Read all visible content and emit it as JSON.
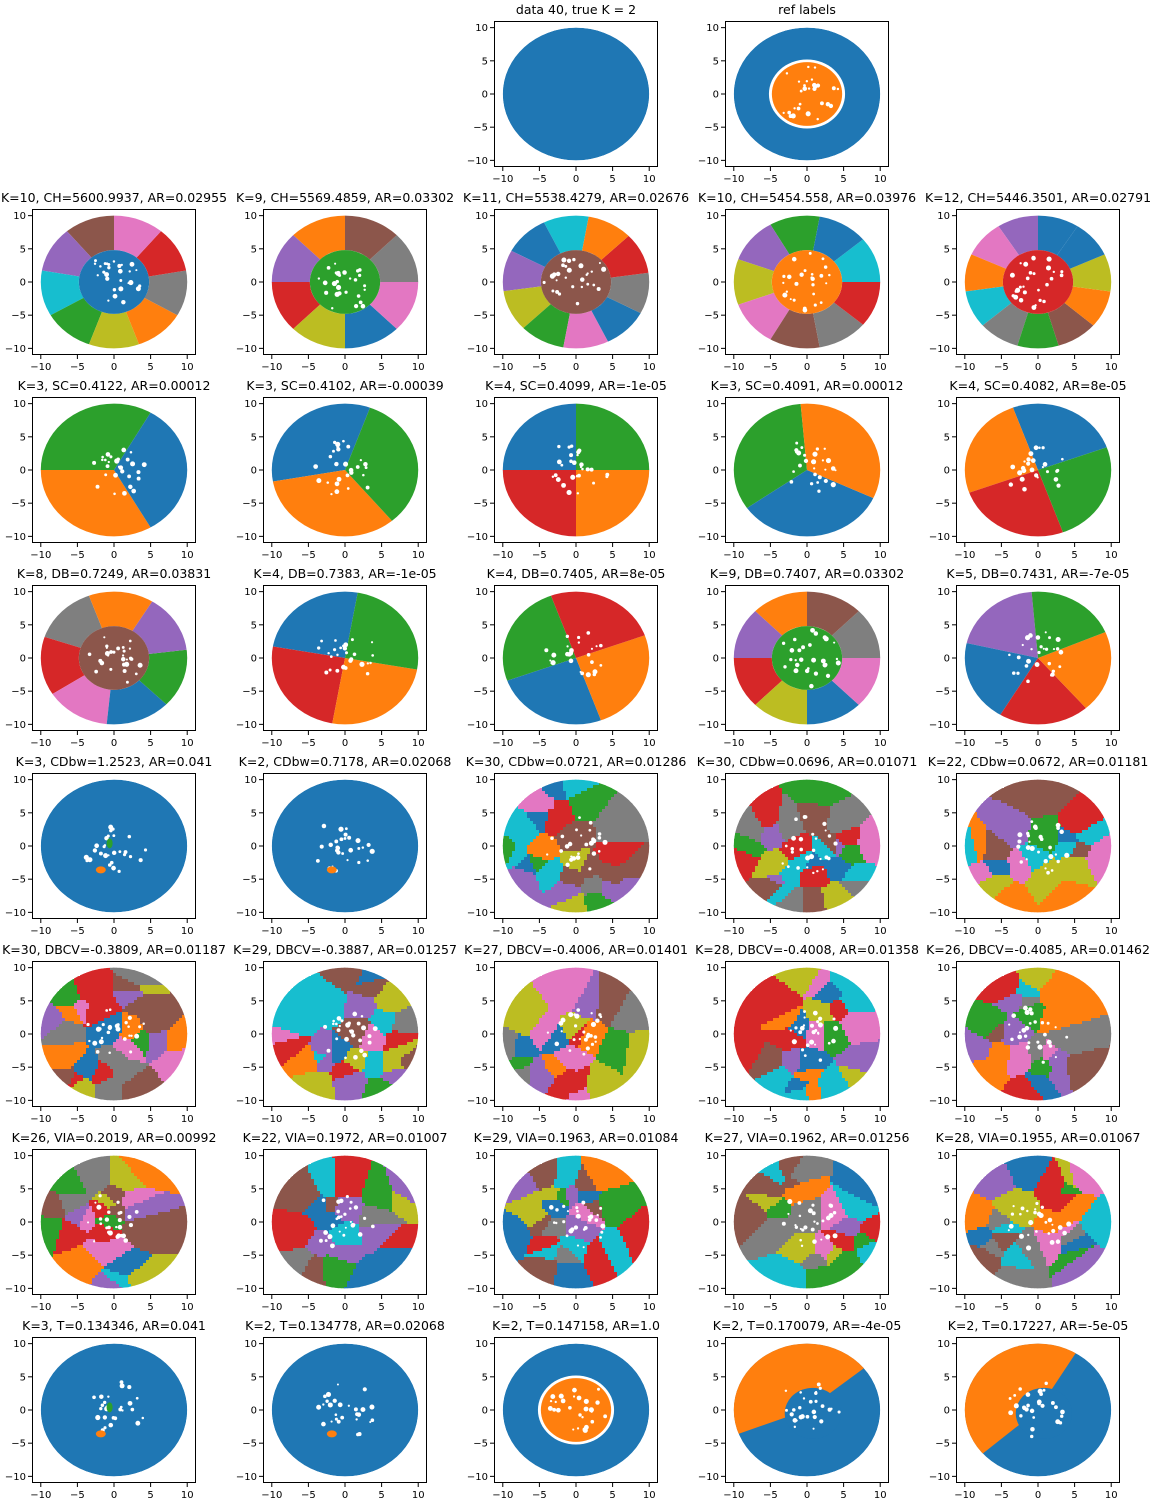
{
  "chart_data": [
    {
      "row": 0,
      "col": 2,
      "title": "data 40, true K = 2",
      "type": "scatter",
      "kind": "plain",
      "k": 1
    },
    {
      "row": 0,
      "col": 3,
      "title": "ref labels",
      "type": "scatter",
      "kind": "ref",
      "k": 2
    },
    {
      "row": 1,
      "col": 0,
      "title": "K=10, CH=5600.9937, AR=0.02955",
      "type": "scatter",
      "kind": "sectors_core",
      "k": 10,
      "colors": [
        "#8c564b",
        "#9467bd",
        "#17becf",
        "#2ca02c",
        "#bcbd22",
        "#ff7f0e",
        "#7f7f7f",
        "#d62728",
        "#e377c2"
      ],
      "core": "#1f77b4",
      "rot": 90
    },
    {
      "row": 1,
      "col": 1,
      "title": "K=9, CH=5569.4859, AR=0.03302",
      "type": "scatter",
      "kind": "sectors_core",
      "k": 9,
      "colors": [
        "#ff7f0e",
        "#9467bd",
        "#d62728",
        "#bcbd22",
        "#1f77b4",
        "#e377c2",
        "#7f7f7f",
        "#8c564b"
      ],
      "core": "#2ca02c",
      "rot": 90
    },
    {
      "row": 1,
      "col": 2,
      "title": "K=11, CH=5538.4279, AR=0.02676",
      "type": "scatter",
      "kind": "sectors_core",
      "k": 11,
      "colors": [
        "#17becf",
        "#1f77b4",
        "#9467bd",
        "#bcbd22",
        "#2ca02c",
        "#e377c2",
        "#1f77b4",
        "#7f7f7f",
        "#d62728",
        "#ff7f0e"
      ],
      "core": "#8c564b",
      "rot": 80
    },
    {
      "row": 1,
      "col": 3,
      "title": "K=10, CH=5454.558, AR=0.03976",
      "type": "scatter",
      "kind": "sectors_core",
      "k": 10,
      "colors": [
        "#2ca02c",
        "#9467bd",
        "#bcbd22",
        "#e377c2",
        "#8c564b",
        "#7f7f7f",
        "#d62728",
        "#17becf",
        "#1f77b4"
      ],
      "core": "#ff7f0e",
      "rot": 80
    },
    {
      "row": 1,
      "col": 4,
      "title": "K=12, CH=5446.3501, AR=0.02791",
      "type": "scatter",
      "kind": "sectors_core",
      "k": 12,
      "colors": [
        "#9467bd",
        "#e377c2",
        "#ff7f0e",
        "#17becf",
        "#7f7f7f",
        "#2ca02c",
        "#8c564b",
        "#ff7f0e",
        "#bcbd22",
        "#1f77b4",
        "#1f77b4"
      ],
      "core": "#d62728",
      "rot": 90
    },
    {
      "row": 2,
      "col": 0,
      "title": "K=3, SC=0.4122, AR=0.00012",
      "type": "scatter",
      "kind": "sectors",
      "k": 3,
      "colors": [
        "#2ca02c",
        "#ff7f0e",
        "#1f77b4"
      ],
      "rot": 60
    },
    {
      "row": 2,
      "col": 1,
      "title": "K=3, SC=0.4102, AR=-0.00039",
      "type": "scatter",
      "kind": "sectors",
      "k": 3,
      "colors": [
        "#1f77b4",
        "#ff7f0e",
        "#2ca02c"
      ],
      "rot": 70
    },
    {
      "row": 2,
      "col": 2,
      "title": "K=4, SC=0.4099, AR=-1e-05",
      "type": "scatter",
      "kind": "sectors",
      "k": 4,
      "colors": [
        "#1f77b4",
        "#d62728",
        "#ff7f0e",
        "#2ca02c"
      ],
      "rot": 90
    },
    {
      "row": 2,
      "col": 3,
      "title": "K=3, SC=0.4091, AR=0.00012",
      "type": "scatter",
      "kind": "sectors",
      "k": 3,
      "colors": [
        "#2ca02c",
        "#1f77b4",
        "#ff7f0e"
      ],
      "rot": 95
    },
    {
      "row": 2,
      "col": 4,
      "title": "K=4, SC=0.4082, AR=8e-05",
      "type": "scatter",
      "kind": "sectors",
      "k": 4,
      "colors": [
        "#1f77b4",
        "#ff7f0e",
        "#d62728",
        "#2ca02c"
      ],
      "rot": 20
    },
    {
      "row": 3,
      "col": 0,
      "title": "K=8, DB=0.7249, AR=0.03831",
      "type": "scatter",
      "kind": "sectors_core",
      "k": 8,
      "colors": [
        "#7f7f7f",
        "#d62728",
        "#e377c2",
        "#1f77b4",
        "#2ca02c",
        "#9467bd",
        "#ff7f0e"
      ],
      "core": "#8c564b",
      "rot": 110
    },
    {
      "row": 3,
      "col": 1,
      "title": "K=4, DB=0.7383, AR=-1e-05",
      "type": "scatter",
      "kind": "sectors",
      "k": 4,
      "colors": [
        "#1f77b4",
        "#d62728",
        "#ff7f0e",
        "#2ca02c"
      ],
      "rot": 80
    },
    {
      "row": 3,
      "col": 2,
      "title": "K=4, DB=0.7405, AR=8e-05",
      "type": "scatter",
      "kind": "sectors",
      "k": 4,
      "colors": [
        "#2ca02c",
        "#1f77b4",
        "#ff7f0e",
        "#d62728"
      ],
      "rot": 110
    },
    {
      "row": 3,
      "col": 3,
      "title": "K=9, DB=0.7407, AR=0.03302",
      "type": "scatter",
      "kind": "sectors_core",
      "k": 9,
      "colors": [
        "#ff7f0e",
        "#9467bd",
        "#d62728",
        "#bcbd22",
        "#1f77b4",
        "#e377c2",
        "#7f7f7f",
        "#8c564b"
      ],
      "core": "#2ca02c",
      "rot": 90
    },
    {
      "row": 3,
      "col": 4,
      "title": "K=5, DB=0.7431, AR=-7e-05",
      "type": "scatter",
      "kind": "sectors",
      "k": 5,
      "colors": [
        "#9467bd",
        "#1f77b4",
        "#d62728",
        "#ff7f0e",
        "#2ca02c"
      ],
      "rot": 95
    },
    {
      "row": 4,
      "col": 0,
      "title": "K=3, CDbw=1.2523, AR=0.041",
      "type": "scatter",
      "kind": "blobs",
      "k": 3
    },
    {
      "row": 4,
      "col": 1,
      "title": "K=2, CDbw=0.7178, AR=0.02068",
      "type": "scatter",
      "kind": "blobs",
      "k": 2
    },
    {
      "row": 4,
      "col": 2,
      "title": "K=30, CDbw=0.0721, AR=0.01286",
      "type": "scatter",
      "kind": "patches",
      "k": 30,
      "seed": 3
    },
    {
      "row": 4,
      "col": 3,
      "title": "K=30, CDbw=0.0696, AR=0.01071",
      "type": "scatter",
      "kind": "patches",
      "k": 30,
      "seed": 7
    },
    {
      "row": 4,
      "col": 4,
      "title": "K=22, CDbw=0.0672, AR=0.01181",
      "type": "scatter",
      "kind": "patches",
      "k": 22,
      "seed": 11
    },
    {
      "row": 5,
      "col": 0,
      "title": "K=30, DBCV=-0.3809, AR=0.01187",
      "type": "scatter",
      "kind": "patches",
      "k": 30,
      "seed": 13
    },
    {
      "row": 5,
      "col": 1,
      "title": "K=29, DBCV=-0.3887, AR=0.01257",
      "type": "scatter",
      "kind": "patches",
      "k": 29,
      "seed": 17
    },
    {
      "row": 5,
      "col": 2,
      "title": "K=27, DBCV=-0.4006, AR=0.01401",
      "type": "scatter",
      "kind": "patches",
      "k": 27,
      "seed": 19
    },
    {
      "row": 5,
      "col": 3,
      "title": "K=28, DBCV=-0.4008, AR=0.01358",
      "type": "scatter",
      "kind": "patches",
      "k": 28,
      "seed": 23
    },
    {
      "row": 5,
      "col": 4,
      "title": "K=26, DBCV=-0.4085, AR=0.01462",
      "type": "scatter",
      "kind": "patches",
      "k": 26,
      "seed": 29
    },
    {
      "row": 6,
      "col": 0,
      "title": "K=26, VIA=0.2019, AR=0.00992",
      "type": "scatter",
      "kind": "patches",
      "k": 26,
      "seed": 31
    },
    {
      "row": 6,
      "col": 1,
      "title": "K=22, VIA=0.1972, AR=0.01007",
      "type": "scatter",
      "kind": "patches",
      "k": 22,
      "seed": 37
    },
    {
      "row": 6,
      "col": 2,
      "title": "K=29, VIA=0.1963, AR=0.01084",
      "type": "scatter",
      "kind": "patches",
      "k": 29,
      "seed": 41
    },
    {
      "row": 6,
      "col": 3,
      "title": "K=27, VIA=0.1962, AR=0.01256",
      "type": "scatter",
      "kind": "patches",
      "k": 27,
      "seed": 43
    },
    {
      "row": 6,
      "col": 4,
      "title": "K=28, VIA=0.1955, AR=0.01067",
      "type": "scatter",
      "kind": "patches",
      "k": 28,
      "seed": 47
    },
    {
      "row": 7,
      "col": 0,
      "title": "K=3, T=0.134346, AR=0.041",
      "type": "scatter",
      "kind": "blobs",
      "k": 3
    },
    {
      "row": 7,
      "col": 1,
      "title": "K=2, T=0.134778, AR=0.02068",
      "type": "scatter",
      "kind": "blobs",
      "k": 2
    },
    {
      "row": 7,
      "col": 2,
      "title": "K=2, T=0.147158, AR=1.0",
      "type": "scatter",
      "kind": "ref",
      "k": 2
    },
    {
      "row": 7,
      "col": 3,
      "title": "K=2, T=0.170079, AR=-4e-05",
      "type": "scatter",
      "kind": "halves",
      "k": 2,
      "colors": [
        "#ff7f0e",
        "#1f77b4"
      ],
      "angle": -60
    },
    {
      "row": 7,
      "col": 4,
      "title": "K=2, T=0.17227, AR=-5e-05",
      "type": "scatter",
      "kind": "halves",
      "k": 2,
      "colors": [
        "#ff7f0e",
        "#1f77b4"
      ],
      "angle": -40
    }
  ],
  "axes": {
    "xlim": [
      -11.2,
      11.2
    ],
    "ylim": [
      -11,
      11
    ],
    "xticks": [
      -10,
      -5,
      0,
      5,
      10
    ],
    "yticks": [
      -10,
      -5,
      0,
      5,
      10
    ],
    "xtick_labels": [
      "−10",
      "−5",
      "0",
      "5",
      "10"
    ],
    "ytick_labels": [
      "−10",
      "−5",
      "0",
      "5",
      "10"
    ]
  },
  "data_description": {
    "inner_disk_radius": 5,
    "outer_ring_inner_radius": 5,
    "outer_ring_outer_radius": 10
  },
  "colors": {
    "blue": "#1f77b4",
    "orange": "#ff7f0e",
    "green": "#2ca02c",
    "red": "#d62728",
    "purple": "#9467bd",
    "brown": "#8c564b",
    "pink": "#e377c2",
    "gray": "#7f7f7f",
    "olive": "#bcbd22",
    "cyan": "#17becf"
  }
}
